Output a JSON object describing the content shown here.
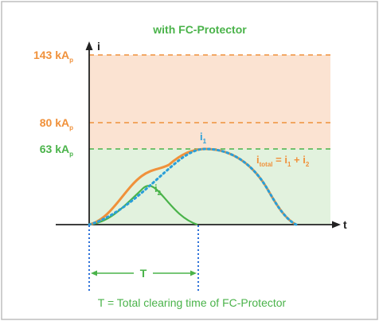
{
  "title": "with FC-Protector",
  "levels": [
    {
      "value": "143",
      "unit": "kA",
      "sub": "p",
      "color": "#f0913b"
    },
    {
      "value": "80",
      "unit": "kA",
      "sub": "p",
      "color": "#f0913b"
    },
    {
      "value": "63",
      "unit": "kA",
      "sub": "p",
      "color": "#4ab34a"
    }
  ],
  "axes": {
    "y_label": "i",
    "x_label": "t"
  },
  "labels": {
    "i1_main": "i",
    "i1_sub": "1",
    "i2_main": "i",
    "i2_sub": "2",
    "itotal_main": "i",
    "itotal_sub": "total",
    "itotal_rest": " = i",
    "itotal_sub1": "1",
    "itotal_plus": " + i",
    "itotal_sub2": "2"
  },
  "interval": {
    "label": "T"
  },
  "caption": "T = Total clearing time of FC-Protector",
  "colors": {
    "orange": "#f0913b",
    "green": "#4ab34a",
    "blue": "#2a9fd8",
    "orange_fill": "#fbe3d2",
    "green_fill": "#e2f2de",
    "frame": "#bdbdbd"
  }
}
